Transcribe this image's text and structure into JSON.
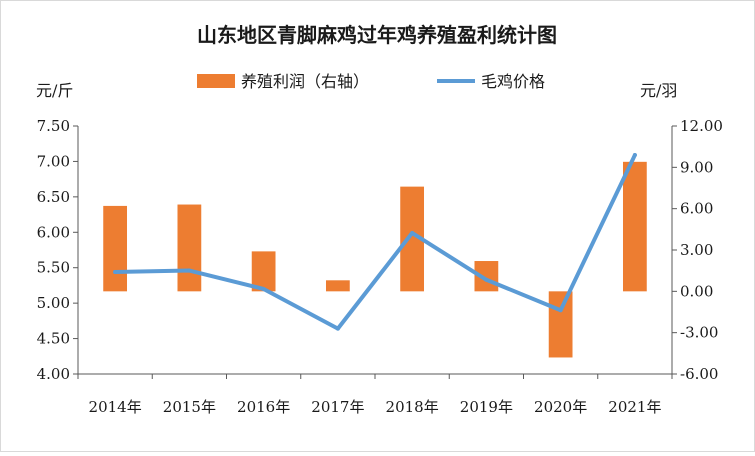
{
  "chart_data": {
    "type": "bar+line",
    "title": "山东地区青脚麻鸡过年鸡养殖盈利统计图",
    "categories": [
      "2014年",
      "2015年",
      "2016年",
      "2017年",
      "2018年",
      "2019年",
      "2020年",
      "2021年"
    ],
    "y_left": {
      "unit": "元/斤",
      "ylim": [
        4.0,
        7.5
      ],
      "ticks": [
        "4.00",
        "4.50",
        "5.00",
        "5.50",
        "6.00",
        "6.50",
        "7.00",
        "7.50"
      ]
    },
    "y_right": {
      "unit": "元/羽",
      "ylim": [
        -6.0,
        12.0
      ],
      "ticks": [
        "-6.00",
        "-3.00",
        "0.00",
        "3.00",
        "6.00",
        "9.00",
        "12.00"
      ]
    },
    "series": [
      {
        "name": "养殖利润（右轴）",
        "type": "bar",
        "axis": "right",
        "color": "#ED7D31",
        "values": [
          6.2,
          6.3,
          2.9,
          0.8,
          7.6,
          2.2,
          -4.8,
          9.4
        ]
      },
      {
        "name": "毛鸡价格",
        "type": "line",
        "axis": "left",
        "color": "#5B9BD5",
        "values": [
          5.44,
          5.46,
          5.2,
          4.64,
          5.99,
          5.33,
          4.9,
          7.09
        ]
      }
    ],
    "grid": false,
    "legend": "top-center"
  }
}
